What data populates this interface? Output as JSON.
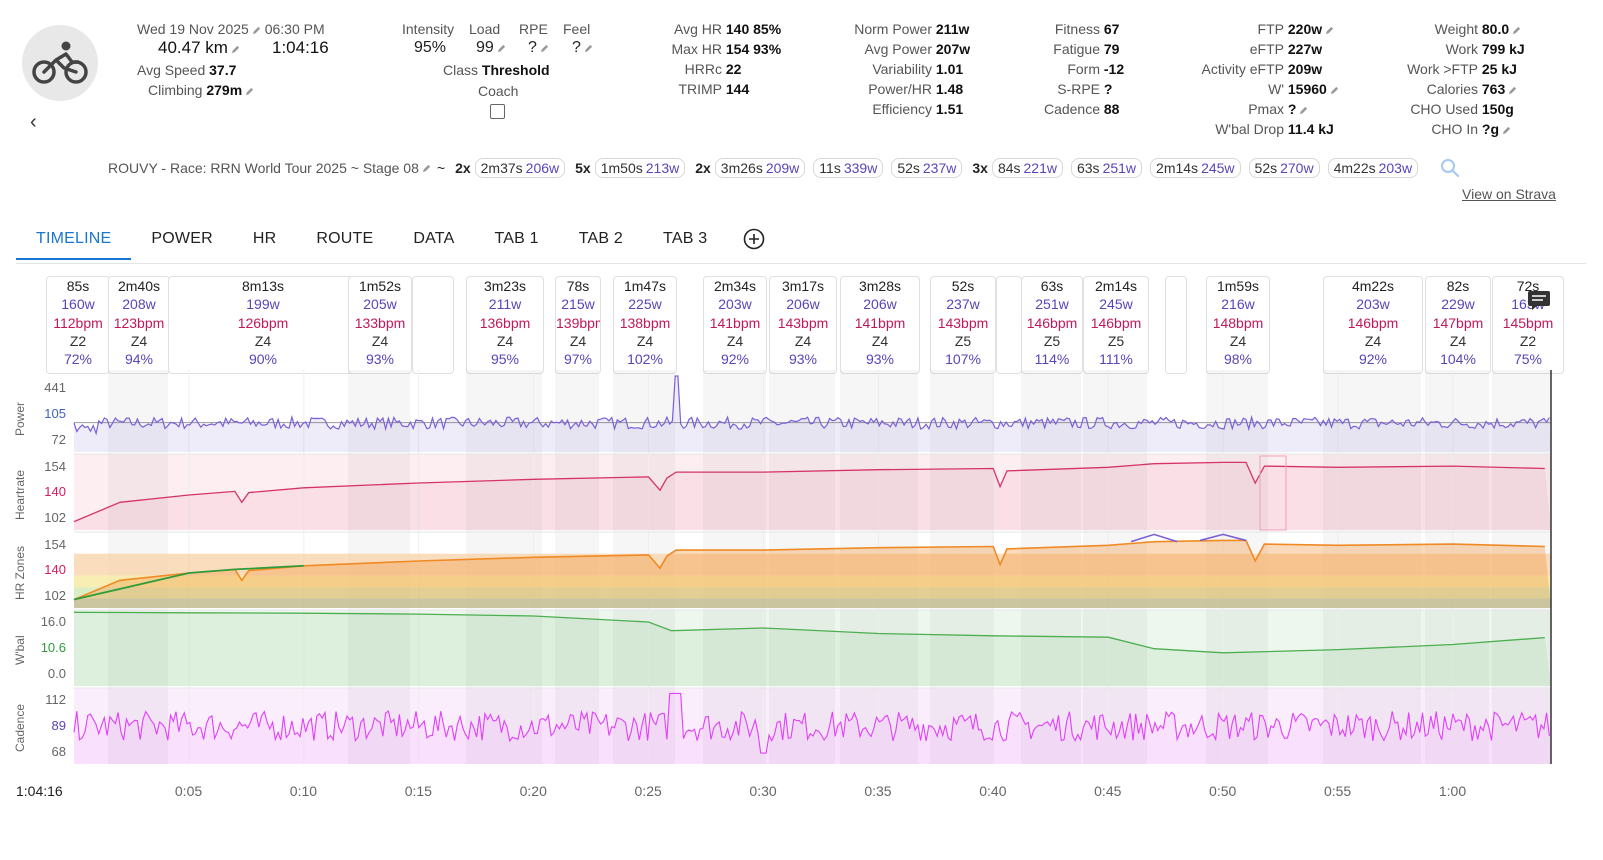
{
  "header": {
    "date": "Wed 19 Nov 2025",
    "time": "06:30 PM",
    "distance": "40.47 km",
    "duration": "1:04:16",
    "avg_speed_label": "Avg Speed",
    "avg_speed": "37.7",
    "climbing_label": "Climbing",
    "climbing": "279m",
    "activity_icon": "bike-icon"
  },
  "effort": {
    "intensity_label": "Intensity",
    "intensity": "95%",
    "load_label": "Load",
    "load": "99",
    "rpe_label": "RPE",
    "rpe": "?",
    "feel_label": "Feel",
    "feel": "?",
    "class_label": "Class",
    "class": "Threshold",
    "coach_label": "Coach"
  },
  "hr_stats": [
    {
      "label": "Avg HR",
      "value": "140 85%"
    },
    {
      "label": "Max HR",
      "value": "154 93%"
    },
    {
      "label": "HRRc",
      "value": "22"
    },
    {
      "label": "TRIMP",
      "value": "144"
    }
  ],
  "power_stats": [
    {
      "label": "Norm Power",
      "value": "211w"
    },
    {
      "label": "Avg Power",
      "value": "207w"
    },
    {
      "label": "Variability",
      "value": "1.01"
    },
    {
      "label": "Power/HR",
      "value": "1.48"
    },
    {
      "label": "Efficiency",
      "value": "1.51"
    }
  ],
  "fitness_stats": [
    {
      "label": "Fitness",
      "value": "67"
    },
    {
      "label": "Fatigue",
      "value": "79"
    },
    {
      "label": "Form",
      "value": "-12"
    },
    {
      "label": "S-RPE",
      "value": "?"
    },
    {
      "label": "Cadence",
      "value": "88"
    }
  ],
  "ftp_stats": [
    {
      "label": "FTP",
      "value": "220w"
    },
    {
      "label": "eFTP",
      "value": "227w"
    },
    {
      "label": "Activity eFTP",
      "value": "209w"
    },
    {
      "label": "W'",
      "value": "15960"
    },
    {
      "label": "Pmax",
      "value": "?"
    },
    {
      "label": "W'bal Drop",
      "value": "11.4 kJ"
    }
  ],
  "body_stats": [
    {
      "label": "Weight",
      "value": "80.0"
    },
    {
      "label": "Work",
      "value": "799 kJ"
    },
    {
      "label": "Work >FTP",
      "value": "25 kJ"
    },
    {
      "label": "Calories",
      "value": "763"
    },
    {
      "label": "CHO Used",
      "value": "150g"
    },
    {
      "label": "CHO In",
      "value": "?g"
    }
  ],
  "activity_name": "ROUVY - Race: RRN World Tour 2025 ~ Stage 08",
  "tilde": "~",
  "interval_groups": [
    {
      "mult": "2x",
      "time": "2m37s",
      "watts": "206w"
    },
    {
      "mult": "5x",
      "time": "1m50s",
      "watts": "213w"
    },
    {
      "mult": "2x",
      "time": "3m26s",
      "watts": "209w"
    },
    {
      "mult": "",
      "time": "11s",
      "watts": "339w"
    },
    {
      "mult": "",
      "time": "52s",
      "watts": "237w"
    },
    {
      "mult": "3x",
      "time": "84s",
      "watts": "221w"
    },
    {
      "mult": "",
      "time": "63s",
      "watts": "251w"
    },
    {
      "mult": "",
      "time": "2m14s",
      "watts": "245w"
    },
    {
      "mult": "",
      "time": "52s",
      "watts": "270w"
    },
    {
      "mult": "",
      "time": "4m22s",
      "watts": "203w"
    }
  ],
  "view_on_strava": "View on Strava",
  "tabs": [
    "TIMELINE",
    "POWER",
    "HR",
    "ROUTE",
    "DATA",
    "TAB 1",
    "TAB 2",
    "TAB 3"
  ],
  "interval_cards": [
    {
      "time": "85s",
      "power": "160w",
      "hr": "112bpm",
      "zone": "Z2",
      "pct": "72%"
    },
    {
      "time": "2m40s",
      "power": "208w",
      "hr": "123bpm",
      "zone": "Z4",
      "pct": "94%"
    },
    {
      "time": "8m13s",
      "power": "199w",
      "hr": "126bpm",
      "zone": "Z4",
      "pct": "90%"
    },
    {
      "time": "1m52s",
      "power": "205w",
      "hr": "133bpm",
      "zone": "Z4",
      "pct": "93%"
    },
    {
      "time": "",
      "power": "",
      "hr": "",
      "zone": "",
      "pct": ""
    },
    {
      "time": "3m23s",
      "power": "211w",
      "hr": "136bpm",
      "zone": "Z4",
      "pct": "95%"
    },
    {
      "time": "78s",
      "power": "215w",
      "hr": "139bpm",
      "zone": "Z4",
      "pct": "97%"
    },
    {
      "time": "1m47s",
      "power": "225w",
      "hr": "138bpm",
      "zone": "Z4",
      "pct": "102%"
    },
    {
      "time": "2m34s",
      "power": "203w",
      "hr": "141bpm",
      "zone": "Z4",
      "pct": "92%"
    },
    {
      "time": "3m17s",
      "power": "206w",
      "hr": "143bpm",
      "zone": "Z4",
      "pct": "93%"
    },
    {
      "time": "3m28s",
      "power": "206w",
      "hr": "141bpm",
      "zone": "Z4",
      "pct": "93%"
    },
    {
      "time": "52s",
      "power": "237w",
      "hr": "143bpm",
      "zone": "Z5",
      "pct": "107%"
    },
    {
      "time": "",
      "power": "",
      "hr": "",
      "zone": "",
      "pct": ""
    },
    {
      "time": "63s",
      "power": "251w",
      "hr": "146bpm",
      "zone": "Z5",
      "pct": "114%"
    },
    {
      "time": "2m14s",
      "power": "245w",
      "hr": "146bpm",
      "zone": "Z5",
      "pct": "111%"
    },
    {
      "time": "",
      "power": "",
      "hr": "",
      "zone": "",
      "pct": ""
    },
    {
      "time": "1m59s",
      "power": "216w",
      "hr": "148bpm",
      "zone": "Z4",
      "pct": "98%"
    },
    {
      "time": "4m22s",
      "power": "203w",
      "hr": "146bpm",
      "zone": "Z4",
      "pct": "92%"
    },
    {
      "time": "82s",
      "power": "229w",
      "hr": "147bpm",
      "zone": "Z4",
      "pct": "104%"
    },
    {
      "time": "72s",
      "power": "163w",
      "hr": "145bpm",
      "zone": "Z2",
      "pct": "75%"
    }
  ],
  "chart_data": {
    "type": "line",
    "x_ticks": [
      "0:05",
      "0:10",
      "0:15",
      "0:20",
      "0:25",
      "0:30",
      "0:35",
      "0:40",
      "0:45",
      "0:50",
      "0:55",
      "1:00"
    ],
    "x_range_min": [
      0,
      64.27
    ],
    "cursor_time": "1:04:16",
    "series": [
      {
        "name": "Power",
        "unit": "w",
        "yticks": [
          "441",
          "105",
          "72"
        ],
        "color": "#7b5fd6"
      },
      {
        "name": "Heartrate",
        "unit": "bpm",
        "yticks": [
          "154",
          "140",
          "102"
        ],
        "color": "#d6336c",
        "x": [
          0,
          2,
          5,
          7,
          7.3,
          7.6,
          10,
          15,
          20,
          25,
          25.5,
          25.8,
          26.2,
          30,
          35,
          40,
          40.3,
          40.6,
          45,
          47,
          50,
          51,
          51.4,
          51.8,
          55,
          60,
          64
        ],
        "y": [
          102,
          118,
          124,
          127,
          118,
          126,
          130,
          134,
          137,
          139,
          128,
          138,
          143,
          143,
          145,
          146,
          131,
          144,
          147,
          150,
          151,
          151,
          134,
          148,
          147,
          148,
          146
        ]
      },
      {
        "name": "HR Zones",
        "unit": "bpm",
        "yticks": [
          "154",
          "140",
          "102"
        ]
      },
      {
        "name": "W'bal",
        "unit": "kJ",
        "yticks": [
          "16.0",
          "10.6",
          "0.0"
        ],
        "color": "#4caf50",
        "x": [
          0,
          5,
          10,
          15,
          20,
          25,
          26,
          30,
          35,
          40,
          45,
          47,
          50,
          55,
          60,
          64
        ],
        "y": [
          16.0,
          15.9,
          15.8,
          15.6,
          15.2,
          13.9,
          12.0,
          12.6,
          11.4,
          10.9,
          10.6,
          8.1,
          7.2,
          7.9,
          9.0,
          10.5
        ]
      },
      {
        "name": "Cadence",
        "unit": "rpm",
        "yticks": [
          "112",
          "89",
          "68"
        ],
        "color": "#e040fb"
      }
    ]
  }
}
